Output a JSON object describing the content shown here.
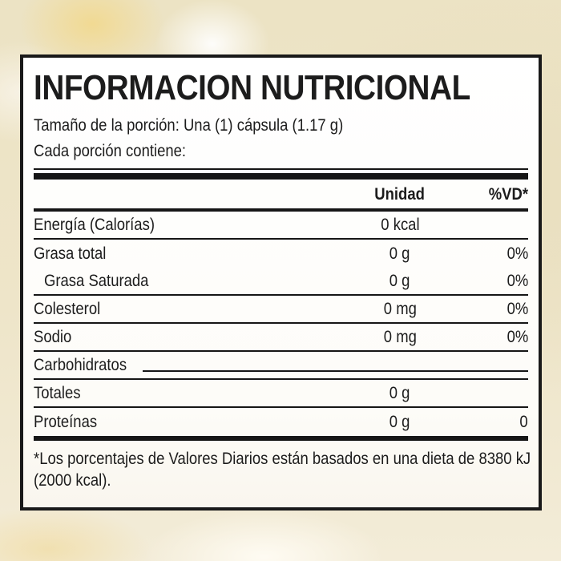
{
  "label": {
    "title": "INFORMACION NUTRICIONAL",
    "serving_line": "Tamaño de la porción: Una (1) cápsula (1.17 g)",
    "contains_line": "Cada porción contiene:",
    "table": {
      "columns": {
        "unit": "Unidad",
        "dv": "%VD*"
      },
      "rows": [
        {
          "name": "Energía (Calorías)",
          "unit": "0 kcal",
          "dv": "",
          "indent": false,
          "sep_after": "thin",
          "leader": false
        },
        {
          "name": "Grasa total",
          "unit": "0 g",
          "dv": "0%",
          "indent": false,
          "sep_after": "none",
          "leader": false
        },
        {
          "name": "Grasa Saturada",
          "unit": "0 g",
          "dv": "0%",
          "indent": true,
          "sep_after": "thin",
          "leader": false
        },
        {
          "name": "Colesterol",
          "unit": "0 mg",
          "dv": "0%",
          "indent": false,
          "sep_after": "thin",
          "leader": false
        },
        {
          "name": "Sodio",
          "unit": "0 mg",
          "dv": "0%",
          "indent": false,
          "sep_after": "thin",
          "leader": false
        },
        {
          "name": "Carbohidratos",
          "unit": "",
          "dv": "",
          "indent": false,
          "sep_after": "thin",
          "leader": true
        },
        {
          "name": "Totales",
          "unit": "0 g",
          "dv": "",
          "indent": false,
          "sep_after": "thin",
          "leader": false
        },
        {
          "name": "Proteínas",
          "unit": "0 g",
          "dv": "0",
          "indent": false,
          "sep_after": "none",
          "leader": false
        }
      ]
    },
    "footnote": {
      "line1": "*Los porcentajes de Valores Diarios están basados en una dieta de  8380 kJ",
      "line2": "(2000 kcal)."
    }
  },
  "colors": {
    "page_background": "#ece3c4",
    "label_background": "#ffffff",
    "border_and_rules": "#191919",
    "text": "#1c1c1c"
  }
}
